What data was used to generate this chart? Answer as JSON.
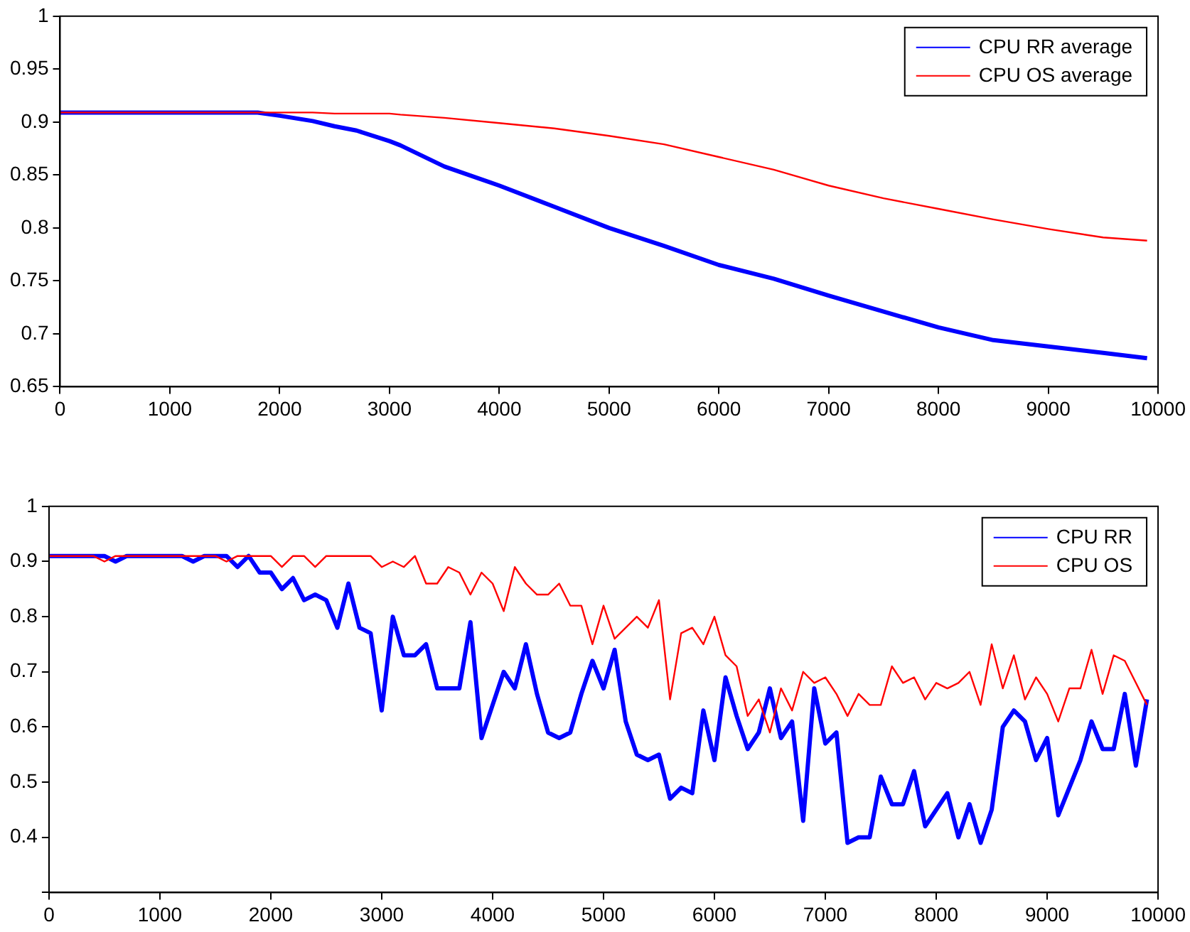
{
  "chart_data": [
    {
      "type": "line",
      "x": [
        0,
        500,
        1000,
        1500,
        1800,
        2000,
        2300,
        2500,
        2700,
        3000,
        3100,
        3500,
        4000,
        4500,
        5000,
        5500,
        6000,
        6500,
        7000,
        7500,
        8000,
        8500,
        9000,
        9500,
        9900
      ],
      "xlim": [
        0,
        10000
      ],
      "xticks": [
        0,
        1000,
        2000,
        3000,
        4000,
        5000,
        6000,
        7000,
        8000,
        9000,
        10000
      ],
      "ylim": [
        0.65,
        1
      ],
      "yticks": [
        0.65,
        0.7,
        0.75,
        0.8,
        0.85,
        0.9,
        0.95,
        1
      ],
      "grid": false,
      "legend": "top right",
      "marker": "none",
      "line_style": "solid",
      "series": [
        {
          "name": "CPU RR average",
          "color": "#0000ff",
          "values": [
            0.909,
            0.909,
            0.909,
            0.909,
            0.909,
            0.906,
            0.901,
            0.896,
            0.892,
            0.882,
            0.878,
            0.858,
            0.84,
            0.82,
            0.8,
            0.783,
            0.765,
            0.752,
            0.736,
            0.721,
            0.706,
            0.694,
            0.688,
            0.682,
            0.677
          ]
        },
        {
          "name": "CPU OS average",
          "color": "#ff0000",
          "values": [
            0.909,
            0.909,
            0.909,
            0.909,
            0.909,
            0.909,
            0.909,
            0.908,
            0.908,
            0.908,
            0.907,
            0.904,
            0.899,
            0.894,
            0.887,
            0.879,
            0.867,
            0.855,
            0.84,
            0.828,
            0.818,
            0.808,
            0.799,
            0.791,
            0.788
          ]
        }
      ]
    },
    {
      "type": "line",
      "x": [
        0,
        100,
        200,
        300,
        400,
        500,
        600,
        700,
        800,
        900,
        1000,
        1100,
        1200,
        1300,
        1400,
        1500,
        1600,
        1700,
        1800,
        1900,
        2000,
        2100,
        2200,
        2300,
        2400,
        2500,
        2600,
        2700,
        2800,
        2900,
        3000,
        3100,
        3200,
        3300,
        3400,
        3500,
        3600,
        3700,
        3800,
        3900,
        4000,
        4100,
        4200,
        4300,
        4400,
        4500,
        4600,
        4700,
        4800,
        4900,
        5000,
        5100,
        5200,
        5300,
        5400,
        5500,
        5600,
        5700,
        5800,
        5900,
        6000,
        6100,
        6200,
        6300,
        6400,
        6500,
        6600,
        6700,
        6800,
        6900,
        7000,
        7100,
        7200,
        7300,
        7400,
        7500,
        7600,
        7700,
        7800,
        7900,
        8000,
        8100,
        8200,
        8300,
        8400,
        8500,
        8600,
        8700,
        8800,
        8900,
        9000,
        9100,
        9200,
        9300,
        9400,
        9500,
        9600,
        9700,
        9800,
        9900
      ],
      "xlim": [
        0,
        10000
      ],
      "xticks": [
        0,
        1000,
        2000,
        3000,
        4000,
        5000,
        6000,
        7000,
        8000,
        9000,
        10000
      ],
      "ylim": [
        0.3,
        1
      ],
      "yticks": [
        {
          "value": 0.3,
          "label": null
        },
        0.4,
        0.5,
        0.6,
        0.7,
        0.8,
        0.9,
        1
      ],
      "grid": false,
      "legend": "top right",
      "marker": "none",
      "line_style": "solid",
      "series": [
        {
          "name": "CPU RR",
          "color": "#0000ff",
          "values": [
            0.91,
            0.91,
            0.91,
            0.91,
            0.91,
            0.91,
            0.9,
            0.91,
            0.91,
            0.91,
            0.91,
            0.91,
            0.91,
            0.9,
            0.91,
            0.91,
            0.91,
            0.89,
            0.91,
            0.88,
            0.88,
            0.85,
            0.87,
            0.83,
            0.84,
            0.83,
            0.78,
            0.86,
            0.78,
            0.77,
            0.63,
            0.8,
            0.73,
            0.73,
            0.75,
            0.67,
            0.67,
            0.67,
            0.79,
            0.58,
            0.64,
            0.7,
            0.67,
            0.75,
            0.66,
            0.59,
            0.58,
            0.59,
            0.66,
            0.72,
            0.67,
            0.74,
            0.61,
            0.55,
            0.54,
            0.55,
            0.47,
            0.49,
            0.48,
            0.63,
            0.54,
            0.69,
            0.62,
            0.56,
            0.59,
            0.67,
            0.58,
            0.61,
            0.43,
            0.67,
            0.57,
            0.59,
            0.39,
            0.4,
            0.4,
            0.51,
            0.46,
            0.46,
            0.52,
            0.42,
            0.45,
            0.48,
            0.4,
            0.46,
            0.39,
            0.45,
            0.6,
            0.63,
            0.61,
            0.54,
            0.58,
            0.44,
            0.49,
            0.54,
            0.61,
            0.56,
            0.56,
            0.66,
            0.53,
            0.65
          ]
        },
        {
          "name": "CPU OS",
          "color": "#ff0000",
          "values": [
            0.91,
            0.91,
            0.91,
            0.91,
            0.91,
            0.9,
            0.91,
            0.91,
            0.91,
            0.91,
            0.91,
            0.91,
            0.91,
            0.91,
            0.91,
            0.91,
            0.9,
            0.91,
            0.91,
            0.91,
            0.91,
            0.89,
            0.91,
            0.91,
            0.89,
            0.91,
            0.91,
            0.91,
            0.91,
            0.91,
            0.89,
            0.9,
            0.89,
            0.91,
            0.86,
            0.86,
            0.89,
            0.88,
            0.84,
            0.88,
            0.86,
            0.81,
            0.89,
            0.86,
            0.84,
            0.84,
            0.86,
            0.82,
            0.82,
            0.75,
            0.82,
            0.76,
            0.78,
            0.8,
            0.78,
            0.83,
            0.65,
            0.77,
            0.78,
            0.75,
            0.8,
            0.73,
            0.71,
            0.62,
            0.65,
            0.59,
            0.67,
            0.63,
            0.7,
            0.68,
            0.69,
            0.66,
            0.62,
            0.66,
            0.64,
            0.64,
            0.71,
            0.68,
            0.69,
            0.65,
            0.68,
            0.67,
            0.68,
            0.7,
            0.64,
            0.75,
            0.67,
            0.73,
            0.65,
            0.69,
            0.66,
            0.61,
            0.67,
            0.67,
            0.74,
            0.66,
            0.73,
            0.72,
            0.68,
            0.64
          ]
        }
      ]
    }
  ]
}
